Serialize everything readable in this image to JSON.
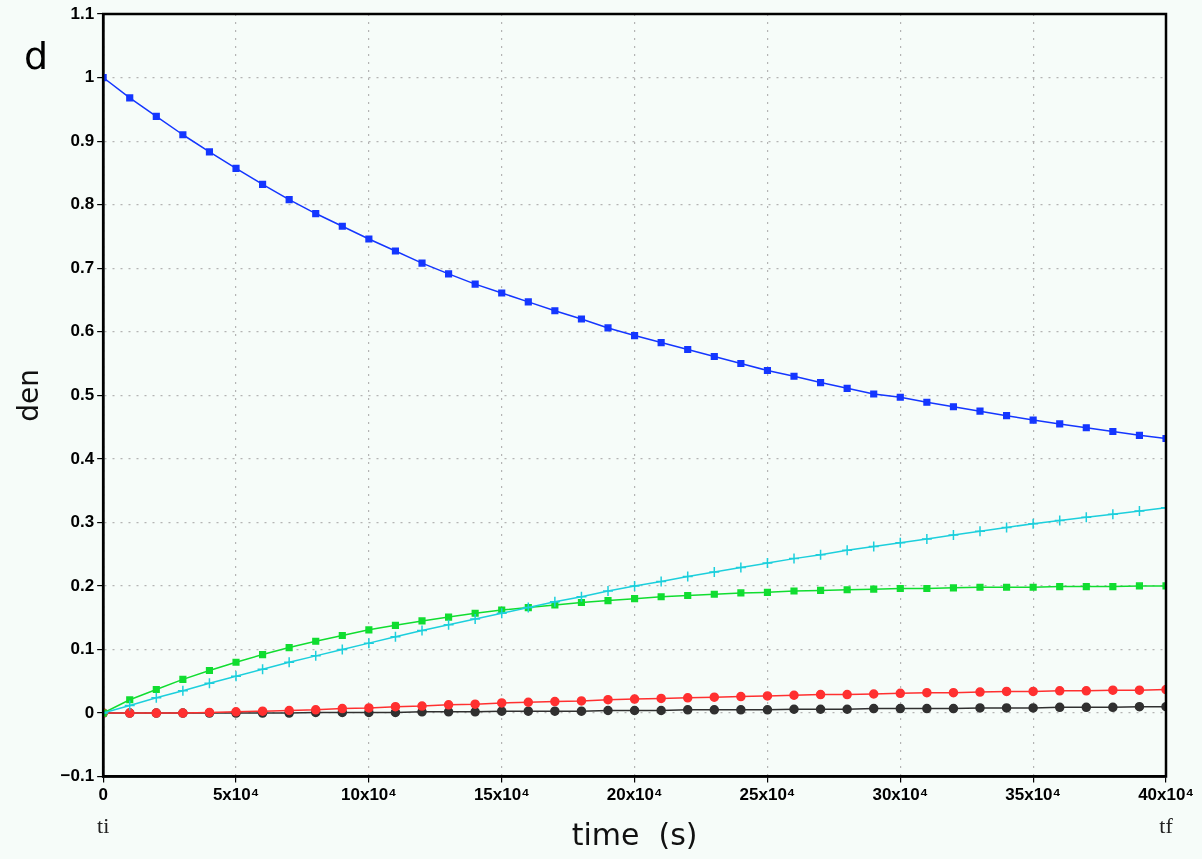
{
  "chart_data": {
    "type": "line",
    "xlabel": "time  (s)",
    "ylabel": "den",
    "annotations": [
      "d",
      "ti",
      "tf"
    ],
    "x": [
      0,
      10000,
      20000,
      30000,
      40000,
      50000,
      60000,
      70000,
      80000,
      90000,
      100000,
      110000,
      120000,
      130000,
      140000,
      150000,
      160000,
      170000,
      180000,
      190000,
      200000,
      210000,
      220000,
      230000,
      240000,
      250000,
      260000,
      270000,
      280000,
      290000,
      300000,
      310000,
      320000,
      330000,
      340000,
      350000,
      360000,
      370000,
      380000,
      390000,
      400000
    ],
    "xlim": [
      0,
      400000
    ],
    "xticks": [
      0,
      {
        "value": 50000,
        "label": "5x10⁴"
      },
      {
        "value": 100000,
        "label": "10x10⁴"
      },
      {
        "value": 150000,
        "label": "15x10⁴"
      },
      {
        "value": 200000,
        "label": "20x10⁴"
      },
      {
        "value": 250000,
        "label": "25x10⁴"
      },
      {
        "value": 300000,
        "label": "30x10⁴"
      },
      {
        "value": 350000,
        "label": "35x10⁴"
      },
      {
        "value": 400000,
        "label": "40x10⁴"
      }
    ],
    "ylim": [
      -0.1,
      1.1
    ],
    "yticks": [
      -0.1,
      0,
      0.1,
      0.2,
      0.3,
      0.4,
      0.5,
      0.6,
      0.7,
      0.8,
      0.9,
      1,
      1.1
    ],
    "grid": true,
    "line_style": "solid",
    "series": [
      {
        "color": "#1436ff",
        "marker": "square",
        "values": [
          1,
          0.968,
          0.939,
          0.91,
          0.883,
          0.857,
          0.832,
          0.808,
          0.786,
          0.766,
          0.746,
          0.727,
          0.708,
          0.691,
          0.675,
          0.661,
          0.647,
          0.633,
          0.62,
          0.606,
          0.594,
          0.583,
          0.572,
          0.561,
          0.55,
          0.539,
          0.53,
          0.52,
          0.511,
          0.502,
          0.497,
          0.489,
          0.482,
          0.475,
          0.468,
          0.461,
          0.455,
          0.449,
          0.443,
          0.437,
          0.432
        ]
      },
      {
        "color": "#1ccfdc",
        "marker": "cross",
        "values": [
          0,
          0.012,
          0.024,
          0.035,
          0.047,
          0.058,
          0.069,
          0.08,
          0.09,
          0.1,
          0.11,
          0.12,
          0.13,
          0.139,
          0.148,
          0.157,
          0.166,
          0.175,
          0.183,
          0.192,
          0.2,
          0.207,
          0.215,
          0.222,
          0.229,
          0.236,
          0.243,
          0.249,
          0.256,
          0.262,
          0.268,
          0.274,
          0.28,
          0.286,
          0.292,
          0.298,
          0.303,
          0.308,
          0.313,
          0.318,
          0.323
        ]
      },
      {
        "color": "#10dd30",
        "marker": "square",
        "values": [
          0,
          0.021,
          0.037,
          0.053,
          0.067,
          0.08,
          0.092,
          0.103,
          0.113,
          0.122,
          0.131,
          0.138,
          0.145,
          0.151,
          0.157,
          0.162,
          0.166,
          0.17,
          0.174,
          0.177,
          0.18,
          0.183,
          0.185,
          0.187,
          0.189,
          0.19,
          0.192,
          0.193,
          0.194,
          0.195,
          0.196,
          0.196,
          0.197,
          0.198,
          0.198,
          0.198,
          0.199,
          0.199,
          0.199,
          0.2,
          0.2
        ]
      },
      {
        "color": "#ff3030",
        "marker": "circle",
        "values": [
          0,
          0,
          0,
          0,
          0.001,
          0.002,
          0.003,
          0.004,
          0.005,
          0.007,
          0.008,
          0.01,
          0.011,
          0.013,
          0.014,
          0.016,
          0.017,
          0.018,
          0.019,
          0.021,
          0.022,
          0.023,
          0.024,
          0.025,
          0.026,
          0.027,
          0.028,
          0.029,
          0.029,
          0.03,
          0.031,
          0.032,
          0.032,
          0.033,
          0.034,
          0.034,
          0.035,
          0.035,
          0.036,
          0.036,
          0.037
        ]
      },
      {
        "color": "#303030",
        "marker": "circle",
        "values": [
          0,
          0,
          0,
          0,
          0,
          0,
          0,
          0,
          0.001,
          0.001,
          0.001,
          0.001,
          0.002,
          0.002,
          0.002,
          0.003,
          0.003,
          0.003,
          0.003,
          0.004,
          0.004,
          0.004,
          0.005,
          0.005,
          0.005,
          0.005,
          0.006,
          0.006,
          0.006,
          0.007,
          0.007,
          0.007,
          0.007,
          0.008,
          0.008,
          0.008,
          0.009,
          0.009,
          0.009,
          0.01,
          0.01
        ]
      }
    ]
  }
}
